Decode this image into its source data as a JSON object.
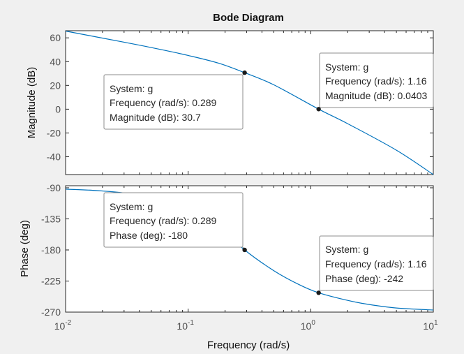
{
  "chart_data": [
    {
      "type": "line",
      "panel": "magnitude",
      "title": "Bode Diagram",
      "ylabel": "Magnitude (dB)",
      "xlabel": "Frequency  (rad/s)",
      "xscale": "log",
      "xlim": [
        0.01,
        10
      ],
      "ylim": [
        -55,
        66
      ],
      "yticks": [
        60,
        40,
        20,
        0,
        -20,
        -40
      ],
      "ytick_labels": [
        "60",
        "40",
        "20",
        "0",
        "-20",
        "-40"
      ],
      "grid": false,
      "series": [
        {
          "color": "#0072bd",
          "x": [
            0.01,
            0.0178,
            0.0316,
            0.0562,
            0.1,
            0.178,
            0.289,
            0.5,
            1.16,
            2,
            5,
            10
          ],
          "y": [
            65.7,
            60.8,
            55.9,
            50.8,
            45.2,
            38.6,
            30.7,
            20.5,
            0.04,
            -12.2,
            -34.5,
            -55
          ]
        }
      ],
      "datatips": [
        {
          "x": 0.289,
          "y": 30.7,
          "lines": [
            {
              "label": "System: ",
              "value": "g"
            },
            {
              "label": "Frequency (rad/s): ",
              "value": "0.289"
            },
            {
              "label": "Magnitude (dB): ",
              "value": "30.7"
            }
          ]
        },
        {
          "x": 1.16,
          "y": 0.0403,
          "lines": [
            {
              "label": "System: ",
              "value": "g"
            },
            {
              "label": "Frequency (rad/s): ",
              "value": "1.16"
            },
            {
              "label": "Magnitude (dB): ",
              "value": "0.0403"
            }
          ]
        }
      ]
    },
    {
      "type": "line",
      "panel": "phase",
      "ylabel": "Phase (deg)",
      "xlabel": "Frequency  (rad/s)",
      "xscale": "log",
      "xlim": [
        0.01,
        10
      ],
      "ylim": [
        -270,
        -87
      ],
      "yticks": [
        -90,
        -135,
        -180,
        -225,
        -270
      ],
      "ytick_labels": [
        "-90",
        "-135",
        "-180",
        "-225",
        "-270"
      ],
      "xtick_labels": [
        {
          "base": "10",
          "exp": "-2"
        },
        {
          "base": "10",
          "exp": "-1"
        },
        {
          "base": "10",
          "exp": "0"
        },
        {
          "base": "10",
          "exp": "1"
        }
      ],
      "grid": false,
      "series": [
        {
          "color": "#0072bd",
          "x": [
            0.01,
            0.0178,
            0.0316,
            0.0562,
            0.1,
            0.178,
            0.289,
            0.5,
            0.8,
            1.16,
            2,
            3,
            5,
            10
          ],
          "y": [
            -92,
            -94,
            -98,
            -106,
            -120,
            -146,
            -180,
            -210,
            -230,
            -242,
            -253,
            -259,
            -264,
            -267
          ]
        }
      ],
      "datatips": [
        {
          "x": 0.289,
          "y": -180,
          "lines": [
            {
              "label": "System: ",
              "value": "g"
            },
            {
              "label": "Frequency (rad/s): ",
              "value": "0.289"
            },
            {
              "label": "Phase (deg): ",
              "value": "-180"
            }
          ]
        },
        {
          "x": 1.16,
          "y": -242,
          "lines": [
            {
              "label": "System: ",
              "value": "g"
            },
            {
              "label": "Frequency (rad/s): ",
              "value": "1.16"
            },
            {
              "label": "Phase (deg): ",
              "value": "-242"
            }
          ]
        }
      ]
    }
  ]
}
